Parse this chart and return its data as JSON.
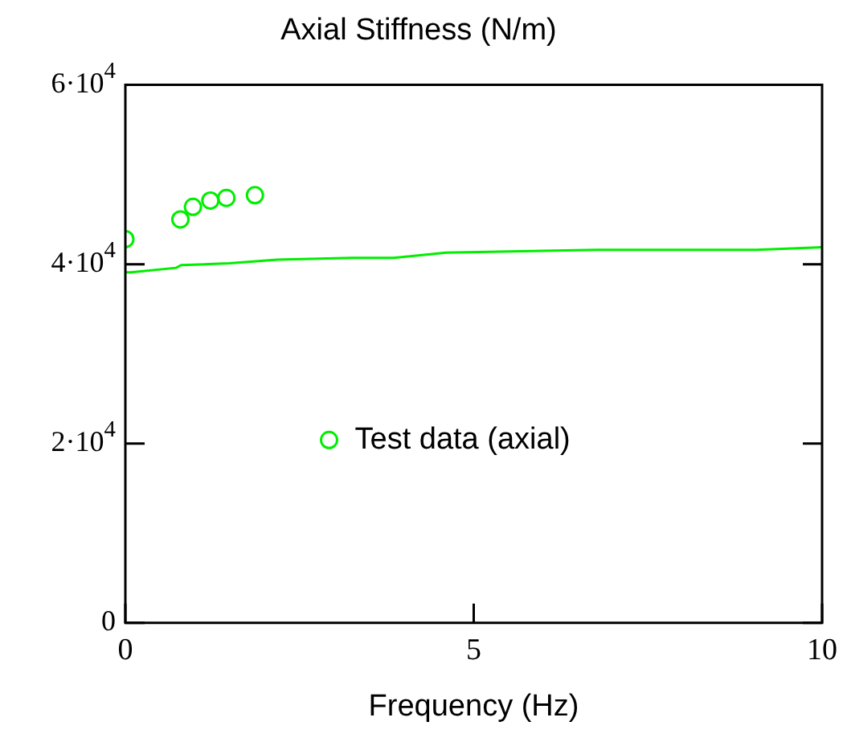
{
  "chart_data": {
    "type": "line",
    "title": "Axial Stiffness (N/m)",
    "xlabel": "Frequency (Hz)",
    "series": [
      {
        "color": "#00ee00",
        "marker": "none",
        "x": [
          0,
          0.08,
          0.73,
          0.8,
          1.49,
          2.18,
          3.25,
          3.85,
          4.6,
          6.77,
          9.06,
          10
        ],
        "values": [
          39100,
          39100,
          39600,
          39900,
          40100,
          40500,
          40700,
          40700,
          41300,
          41600,
          41600,
          41900
        ]
      },
      {
        "type": "scatter",
        "name": "Test data (axial)",
        "color": "#00ee00",
        "marker": "circle",
        "x": [
          0,
          0.79,
          0.97,
          1.22,
          1.45,
          1.86
        ],
        "values": [
          42800,
          45000,
          46400,
          47100,
          47400,
          47700
        ]
      }
    ],
    "xlim": [
      0,
      10
    ],
    "xticks": [
      0,
      5,
      10
    ],
    "ylim": [
      0,
      60000
    ],
    "yticks": [
      0,
      {
        "value": 20000,
        "label": "2·10$^{4}$"
      },
      {
        "value": 40000,
        "label": "4·10$^{4}$"
      },
      {
        "value": 60000,
        "label": "6·10$^{4}$"
      }
    ],
    "grid": false,
    "legend": "center",
    "line_style": "solid"
  }
}
